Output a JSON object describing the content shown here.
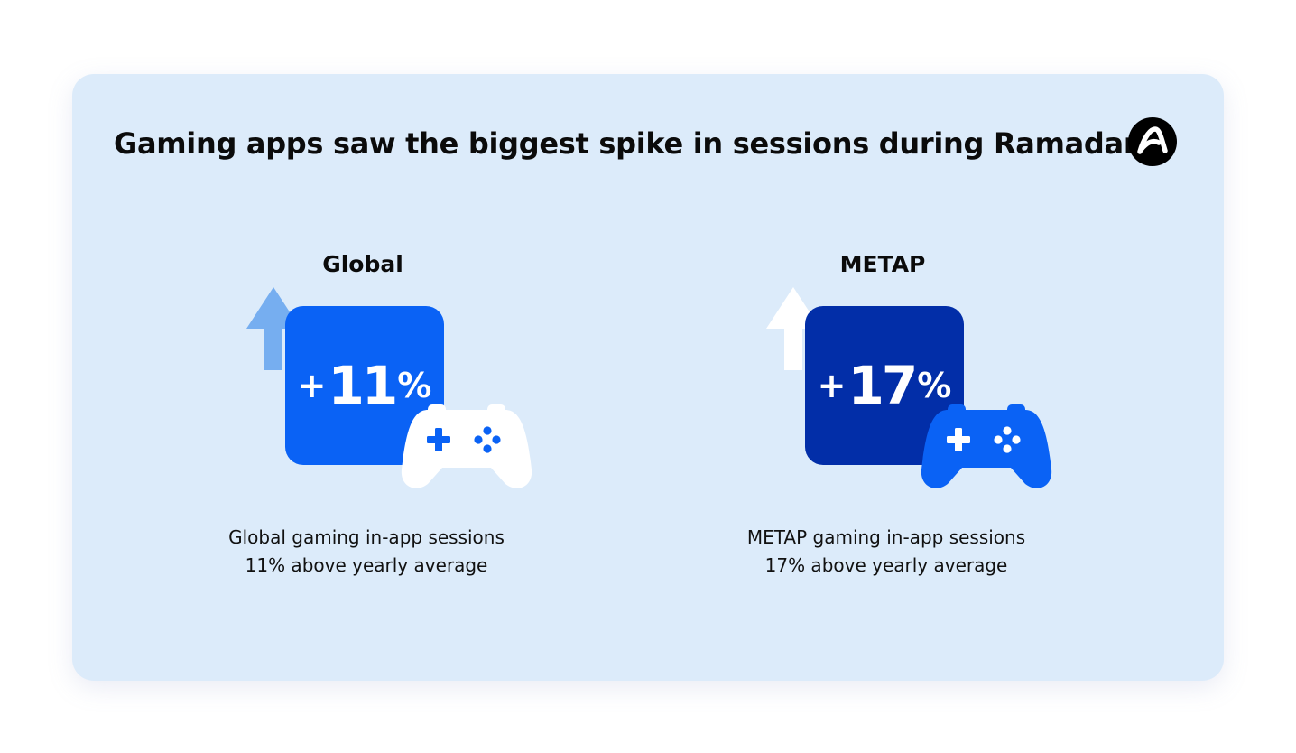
{
  "title": "Gaming apps saw the biggest spike in sessions during Ramadan",
  "logo_icon": "adjust-logo-icon",
  "colors": {
    "card_background": "#dcebfa",
    "global_box": "#0a62f5",
    "metap_box": "#022ea8",
    "global_arrow": "#76aef0",
    "metap_arrow": "#ffffff",
    "global_controller": "#ffffff",
    "metap_controller": "#0a62f5"
  },
  "panels": [
    {
      "region": "Global",
      "stat_sign": "+",
      "stat_value": "11",
      "stat_unit": "%",
      "caption_line1": "Global gaming in-app sessions",
      "caption_line2": "11% above yearly average",
      "icons": [
        "up-arrow-icon",
        "game-controller-icon"
      ]
    },
    {
      "region": "METAP",
      "stat_sign": "+",
      "stat_value": "17",
      "stat_unit": "%",
      "caption_line1": "METAP gaming in-app sessions",
      "caption_line2": "17% above yearly average",
      "icons": [
        "up-arrow-icon",
        "game-controller-icon"
      ]
    }
  ]
}
